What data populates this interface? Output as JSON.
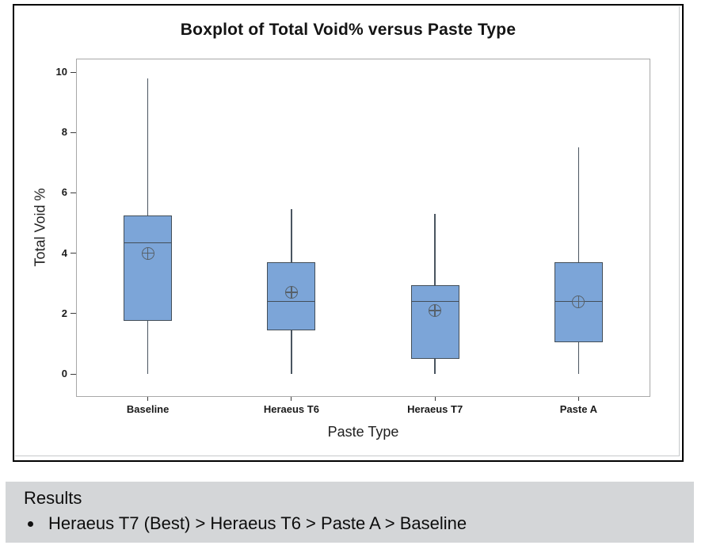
{
  "title": "Boxplot of Total Void% versus Paste Type",
  "colors": {
    "box_fill": "#7CA5D8",
    "box_border": "#434E58",
    "whisker": "#4A5560",
    "median_line": "#434E58",
    "mean_marker": "#57616A",
    "tick": "#3c3c3c",
    "plot_frame": "#a8a8a8",
    "results_bg": "#D4D6D8"
  },
  "results": {
    "heading": "Results",
    "bullet": "Heraeus T7 (Best) > Heraeus T6 > Paste A > Baseline"
  },
  "chart_data": {
    "type": "boxplot",
    "title": "Boxplot of Total Void% versus Paste Type",
    "xlabel": "Paste Type",
    "ylabel": "Total Void %",
    "ylim": [
      0,
      10
    ],
    "yticks": [
      0,
      2,
      4,
      6,
      8,
      10
    ],
    "grid": false,
    "legend": false,
    "categories": [
      "Baseline",
      "Heraeus T6",
      "Heraeus T7",
      "Paste A"
    ],
    "series": [
      {
        "category": "Baseline",
        "whisker_low": 0.0,
        "q1": 1.75,
        "median": 4.35,
        "q3": 5.25,
        "whisker_high": 9.8,
        "mean": 4.0
      },
      {
        "category": "Heraeus T6",
        "whisker_low": 0.0,
        "q1": 1.45,
        "median": 2.4,
        "q3": 3.7,
        "whisker_high": 5.45,
        "mean": 2.7
      },
      {
        "category": "Heraeus T7",
        "whisker_low": 0.0,
        "q1": 0.5,
        "median": 2.4,
        "q3": 2.95,
        "whisker_high": 5.3,
        "mean": 2.1
      },
      {
        "category": "Paste A",
        "whisker_low": 0.0,
        "q1": 1.05,
        "median": 2.4,
        "q3": 3.7,
        "whisker_high": 7.5,
        "mean": 2.4
      }
    ]
  }
}
